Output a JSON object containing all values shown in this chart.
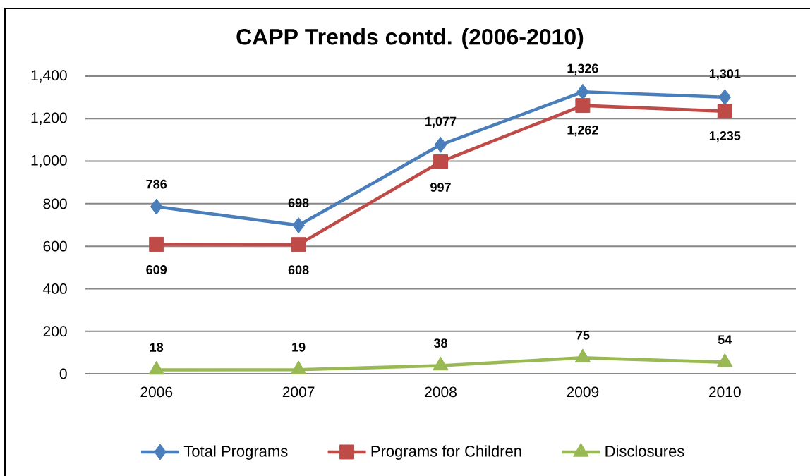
{
  "chart_data": {
    "type": "line",
    "title": "CAPP Trends contd. (2006-2010)",
    "categories": [
      "2006",
      "2007",
      "2008",
      "2009",
      "2010"
    ],
    "series": [
      {
        "name": "Total Programs",
        "color": "#4a7ebb",
        "marker": "diamond",
        "values": [
          786,
          698,
          1077,
          1326,
          1301
        ],
        "value_labels": [
          "786",
          "698",
          "1,077",
          "1,326",
          "1,301"
        ]
      },
      {
        "name": "Programs for Children",
        "color": "#be4b48",
        "marker": "square",
        "values": [
          609,
          608,
          997,
          1262,
          1235
        ],
        "value_labels": [
          "609",
          "608",
          "997",
          "1,262",
          "1,235"
        ]
      },
      {
        "name": "Disclosures",
        "color": "#98b954",
        "marker": "triangle",
        "values": [
          18,
          19,
          38,
          75,
          54
        ],
        "value_labels": [
          "18",
          "19",
          "38",
          "75",
          "54"
        ]
      }
    ],
    "ylim": [
      0,
      1400
    ],
    "yticks": [
      0,
      200,
      400,
      600,
      800,
      {
        "value": 1000,
        "label": "1,000"
      },
      {
        "value": 1200,
        "label": "1,200"
      },
      {
        "value": 1400,
        "label": "1,400"
      }
    ],
    "grid": "y",
    "legend": "bottom",
    "line_style": "solid"
  }
}
